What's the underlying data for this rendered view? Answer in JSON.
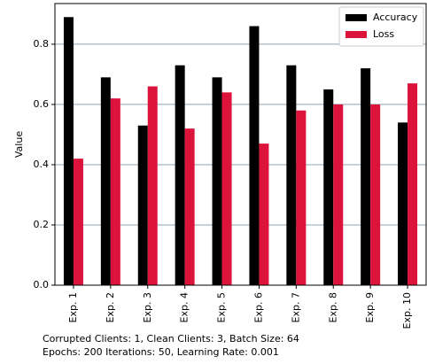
{
  "chart_data": {
    "type": "bar",
    "ylabel": "Value",
    "categories": [
      "Exp. 1",
      "Exp. 2",
      "Exp. 3",
      "Exp. 4",
      "Exp. 5",
      "Exp. 6",
      "Exp. 7",
      "Exp. 8",
      "Exp. 9",
      "Exp. 10"
    ],
    "series": [
      {
        "name": "Accuracy",
        "color": "#000000",
        "values": [
          0.89,
          0.69,
          0.53,
          0.73,
          0.69,
          0.86,
          0.73,
          0.65,
          0.72,
          0.54
        ]
      },
      {
        "name": "Loss",
        "color": "#dc143c",
        "values": [
          0.42,
          0.62,
          0.66,
          0.52,
          0.64,
          0.47,
          0.58,
          0.6,
          0.6,
          0.67
        ]
      }
    ],
    "ylim": [
      0,
      0.935
    ],
    "yticks": [
      {
        "value": 0,
        "label": "0.0"
      },
      0.2,
      0.4,
      0.6,
      0.8
    ],
    "grid": true,
    "legend": "upper right",
    "caption": [
      "Corrupted Clients: 1, Clean Clients: 3, Batch Size: 64",
      "Epochs: 200 Iterations: 50, Learning Rate: 0.001"
    ]
  }
}
